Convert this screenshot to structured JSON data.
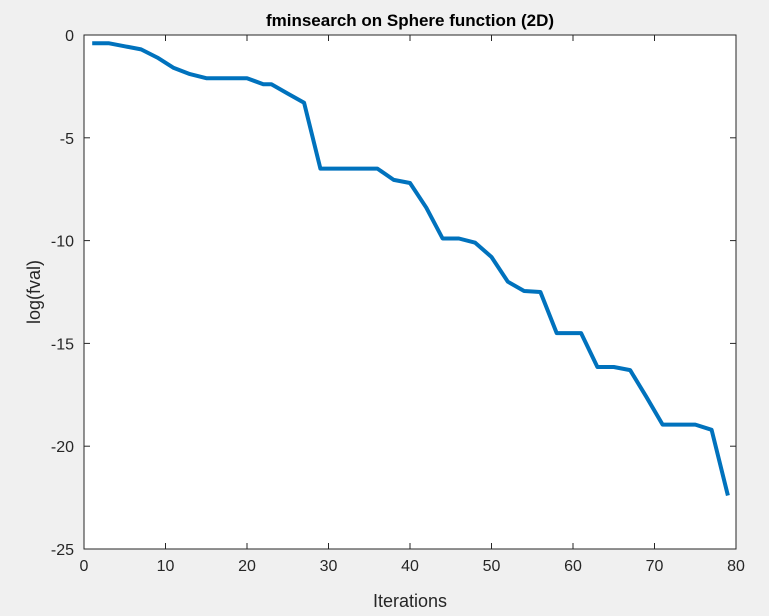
{
  "chart_data": {
    "type": "line",
    "title": "fminsearch on Sphere function (2D)",
    "xlabel": "Iterations",
    "ylabel": "log(fval)",
    "xlim": [
      0,
      80
    ],
    "ylim": [
      -25,
      0
    ],
    "xticks": [
      0,
      10,
      20,
      30,
      40,
      50,
      60,
      70,
      80
    ],
    "yticks": [
      0,
      -5,
      -10,
      -15,
      -20,
      -25
    ],
    "xtick_labels": [
      "0",
      "10",
      "20",
      "30",
      "40",
      "50",
      "60",
      "70",
      "80"
    ],
    "ytick_labels": [
      "0",
      "-5",
      "-10",
      "-15",
      "-20",
      "-25"
    ],
    "grid": false,
    "colors": {
      "line": "#0072bd",
      "axes_bg": "#ffffff",
      "figure_bg": "#f0f0f0",
      "axis": "#262626"
    },
    "series": [
      {
        "x": [
          1,
          3,
          5,
          7,
          9,
          11,
          13,
          15,
          17,
          19,
          20,
          22,
          23,
          25,
          27,
          29,
          31,
          33,
          35,
          36,
          38,
          40,
          42,
          44,
          46,
          48,
          50,
          52,
          54,
          56,
          58,
          61,
          63,
          65,
          67,
          69,
          71,
          73,
          75,
          77,
          79
        ],
        "y": [
          -0.4,
          -0.4,
          -0.55,
          -0.7,
          -1.1,
          -1.6,
          -1.9,
          -2.1,
          -2.1,
          -2.1,
          -2.1,
          -2.4,
          -2.4,
          -2.85,
          -3.3,
          -6.5,
          -6.5,
          -6.5,
          -6.5,
          -6.5,
          -7.05,
          -7.2,
          -8.4,
          -9.9,
          -9.9,
          -10.1,
          -10.8,
          -12.0,
          -12.45,
          -12.5,
          -14.5,
          -14.5,
          -16.15,
          -16.15,
          -16.3,
          -17.6,
          -18.95,
          -18.95,
          -18.95,
          -19.2,
          -22.4
        ]
      }
    ]
  }
}
